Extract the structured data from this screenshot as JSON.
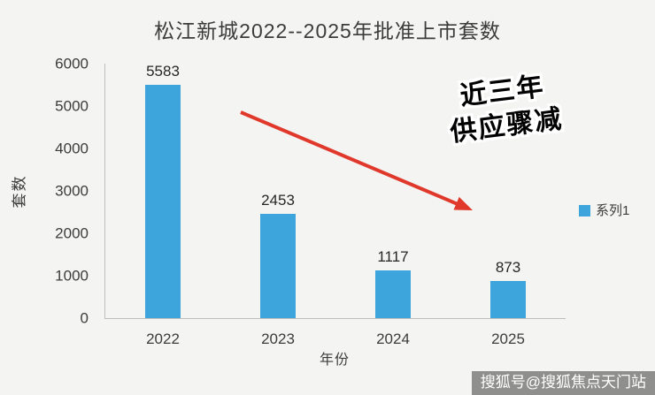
{
  "chart_data": {
    "type": "bar",
    "title": "松江新城2022--2025年批准上市套数",
    "categories": [
      "2022",
      "2023",
      "2024",
      "2025"
    ],
    "series": [
      {
        "name": "系列1",
        "values": [
          5583,
          2453,
          1117,
          873
        ]
      }
    ],
    "xlabel": "年份",
    "ylabel": "套数",
    "ylim": [
      0,
      6000
    ],
    "yticks": [
      0,
      1000,
      2000,
      3000,
      4000,
      5000,
      6000
    ],
    "grid": false,
    "legend_position": "right",
    "bar_labels": true
  },
  "annotation": {
    "line1": "近三年",
    "line2": "供应骤减"
  },
  "watermark": {
    "text": "搜狐号@搜狐焦点天门站"
  },
  "colors": {
    "bar": "#3da4dc",
    "arrow": "#e0392c",
    "background": "#f4f4f2",
    "annotation_fill": "#000000",
    "annotation_outline": "#ffffff"
  }
}
